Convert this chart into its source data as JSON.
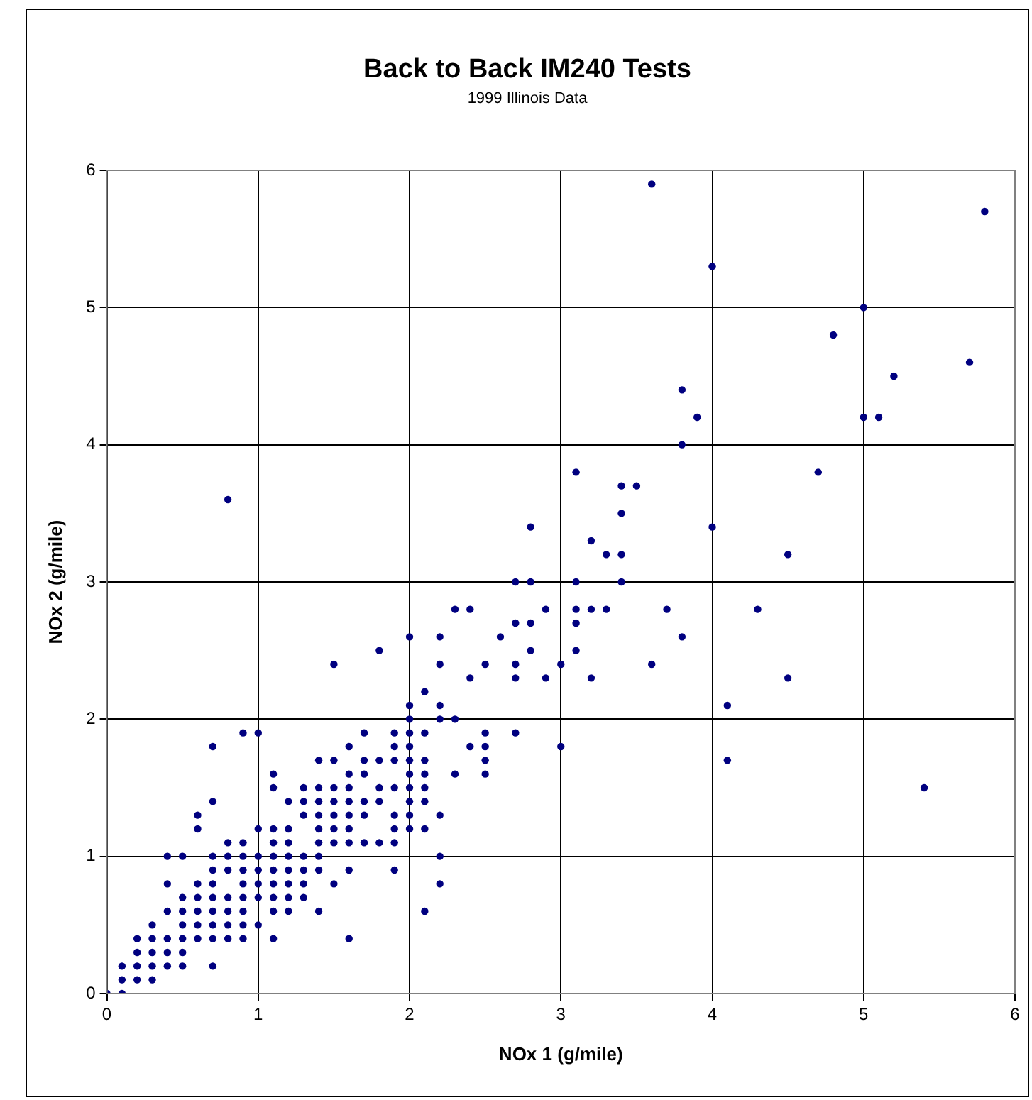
{
  "chart_data": {
    "type": "scatter",
    "title": "Back to Back IM240 Tests",
    "subtitle": "1999 Illinois Data",
    "xlabel": "NOx 1 (g/mile)",
    "ylabel": "NOx 2 (g/mile)",
    "xlim": [
      0,
      6
    ],
    "ylim": [
      0,
      6
    ],
    "xticks": [
      0,
      1,
      2,
      3,
      4,
      5,
      6
    ],
    "yticks": [
      0,
      1,
      2,
      3,
      4,
      5,
      6
    ],
    "grid": true,
    "legend": false,
    "marker": "circle",
    "series": [
      {
        "color": "#000080",
        "x": [
          0,
          0.1,
          0.1,
          0.2,
          0.3,
          0.1,
          0.2,
          0.3,
          0.4,
          0.5,
          0.7,
          0.2,
          0.3,
          0.4,
          0.5,
          0.2,
          0.3,
          0.4,
          0.5,
          0.6,
          0.7,
          0.8,
          0.9,
          1.1,
          1.6,
          0.3,
          0.5,
          0.6,
          0.7,
          0.8,
          0.9,
          1.0,
          0.4,
          0.5,
          0.6,
          0.7,
          0.8,
          0.9,
          1.1,
          1.2,
          1.4,
          2.1,
          0.5,
          0.6,
          0.7,
          0.8,
          0.9,
          1.0,
          1.1,
          1.2,
          1.3,
          0.4,
          0.6,
          0.7,
          0.9,
          1.0,
          1.1,
          1.2,
          1.3,
          1.5,
          2.2,
          0.7,
          0.8,
          0.9,
          1.0,
          1.1,
          1.2,
          1.3,
          1.4,
          1.6,
          1.9,
          0.4,
          0.5,
          0.7,
          0.8,
          0.9,
          1.0,
          1.1,
          1.2,
          1.3,
          1.4,
          2.2,
          0.8,
          0.9,
          1.1,
          1.2,
          1.4,
          1.5,
          1.6,
          1.7,
          1.8,
          1.9,
          0.6,
          1.0,
          1.1,
          1.2,
          1.4,
          1.5,
          1.6,
          1.9,
          2.0,
          2.1,
          0.6,
          1.3,
          1.4,
          1.5,
          1.6,
          1.7,
          1.9,
          2.0,
          2.2,
          0.7,
          1.2,
          1.3,
          1.4,
          1.5,
          1.6,
          1.7,
          1.8,
          2.0,
          2.1,
          1.1,
          1.3,
          1.4,
          1.5,
          1.6,
          1.8,
          1.9,
          2.0,
          2.1,
          5.4,
          1.1,
          1.6,
          1.7,
          2.0,
          2.1,
          2.3,
          2.5,
          1.4,
          1.5,
          1.7,
          1.8,
          1.9,
          2.0,
          2.1,
          2.5,
          4.1,
          0.7,
          1.6,
          1.9,
          2.0,
          2.4,
          2.5,
          3.0,
          0.9,
          1.0,
          1.7,
          1.9,
          2.0,
          2.1,
          2.5,
          2.7,
          2.0,
          2.2,
          2.3,
          2.0,
          2.2,
          4.1,
          2.1,
          2.4,
          2.7,
          2.9,
          3.2,
          4.5,
          1.5,
          2.2,
          2.5,
          2.7,
          3.0,
          3.6,
          1.8,
          2.8,
          3.1,
          2.0,
          2.2,
          2.6,
          3.8,
          2.7,
          2.8,
          3.1,
          2.3,
          2.4,
          2.9,
          3.1,
          3.2,
          3.3,
          3.7,
          4.3,
          2.7,
          2.8,
          3.1,
          3.4,
          3.3,
          3.4,
          4.5,
          3.2,
          2.8,
          4.0,
          3.4,
          0.8,
          3.4,
          3.5,
          3.1,
          4.7,
          3.8,
          3.9,
          5.0,
          5.1,
          3.8,
          5.2,
          5.7,
          4.8,
          5.0,
          4.0,
          5.8,
          3.6
        ],
        "values": [
          0,
          0,
          0.1,
          0.1,
          0.1,
          0.2,
          0.2,
          0.2,
          0.2,
          0.2,
          0.2,
          0.3,
          0.3,
          0.3,
          0.3,
          0.4,
          0.4,
          0.4,
          0.4,
          0.4,
          0.4,
          0.4,
          0.4,
          0.4,
          0.4,
          0.5,
          0.5,
          0.5,
          0.5,
          0.5,
          0.5,
          0.5,
          0.6,
          0.6,
          0.6,
          0.6,
          0.6,
          0.6,
          0.6,
          0.6,
          0.6,
          0.6,
          0.7,
          0.7,
          0.7,
          0.7,
          0.7,
          0.7,
          0.7,
          0.7,
          0.7,
          0.8,
          0.8,
          0.8,
          0.8,
          0.8,
          0.8,
          0.8,
          0.8,
          0.8,
          0.8,
          0.9,
          0.9,
          0.9,
          0.9,
          0.9,
          0.9,
          0.9,
          0.9,
          0.9,
          0.9,
          1.0,
          1.0,
          1.0,
          1.0,
          1.0,
          1.0,
          1.0,
          1.0,
          1.0,
          1.0,
          1.0,
          1.1,
          1.1,
          1.1,
          1.1,
          1.1,
          1.1,
          1.1,
          1.1,
          1.1,
          1.1,
          1.2,
          1.2,
          1.2,
          1.2,
          1.2,
          1.2,
          1.2,
          1.2,
          1.2,
          1.2,
          1.3,
          1.3,
          1.3,
          1.3,
          1.3,
          1.3,
          1.3,
          1.3,
          1.3,
          1.4,
          1.4,
          1.4,
          1.4,
          1.4,
          1.4,
          1.4,
          1.4,
          1.4,
          1.4,
          1.5,
          1.5,
          1.5,
          1.5,
          1.5,
          1.5,
          1.5,
          1.5,
          1.5,
          1.5,
          1.6,
          1.6,
          1.6,
          1.6,
          1.6,
          1.6,
          1.6,
          1.7,
          1.7,
          1.7,
          1.7,
          1.7,
          1.7,
          1.7,
          1.7,
          1.7,
          1.8,
          1.8,
          1.8,
          1.8,
          1.8,
          1.8,
          1.8,
          1.9,
          1.9,
          1.9,
          1.9,
          1.9,
          1.9,
          1.9,
          1.9,
          2.0,
          2.0,
          2.0,
          2.1,
          2.1,
          2.1,
          2.2,
          2.3,
          2.3,
          2.3,
          2.3,
          2.3,
          2.4,
          2.4,
          2.4,
          2.4,
          2.4,
          2.4,
          2.5,
          2.5,
          2.5,
          2.6,
          2.6,
          2.6,
          2.6,
          2.7,
          2.7,
          2.7,
          2.8,
          2.8,
          2.8,
          2.8,
          2.8,
          2.8,
          2.8,
          2.8,
          3.0,
          3.0,
          3.0,
          3.0,
          3.2,
          3.2,
          3.2,
          3.3,
          3.4,
          3.4,
          3.5,
          3.6,
          3.7,
          3.7,
          3.8,
          3.8,
          4.0,
          4.2,
          4.2,
          4.2,
          4.4,
          4.5,
          4.6,
          4.8,
          5.0,
          5.3,
          5.7,
          5.9
        ]
      }
    ]
  }
}
